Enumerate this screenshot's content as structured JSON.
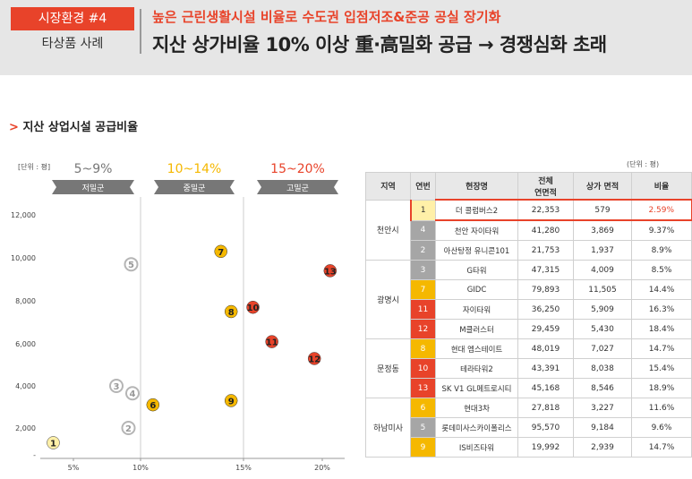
{
  "header": {
    "badge": "시장환경 #4",
    "subtitle": "타상품 사례",
    "headline": "높은 근린생활시설 비율로 수도권 입점저조&준공 공실 장기화",
    "title": "지산 상가비율 10% 이상 重·高밀화 공급 → 경쟁심화 초래"
  },
  "section_title": "지산 상업시설 공급비율",
  "chart_data": {
    "type": "scatter",
    "unit_label": "[단위 : 평]",
    "zones": [
      {
        "range": "5~9%",
        "label": "저밀군",
        "color": "#777777"
      },
      {
        "range": "10~14%",
        "label": "중밀군",
        "color": "#f5b800"
      },
      {
        "range": "15~20%",
        "label": "고밀군",
        "color": "#e8432a"
      }
    ],
    "xlim": [
      3,
      21
    ],
    "ylim": [
      0,
      12500
    ],
    "xticks": [
      {
        "value": 5,
        "label": "5%"
      },
      {
        "value": 10,
        "label": "10%"
      },
      {
        "value": 15,
        "label": "15%"
      },
      {
        "value": 20,
        "label": "20%"
      }
    ],
    "yticks": [
      {
        "value": 0,
        "label": "-"
      },
      {
        "value": 2000,
        "label": "2,000"
      },
      {
        "value": 4000,
        "label": "4,000"
      },
      {
        "value": 6000,
        "label": "6,000"
      },
      {
        "value": 8000,
        "label": "8,000"
      },
      {
        "value": 10000,
        "label": "10,000"
      },
      {
        "value": 12000,
        "label": "12,000"
      }
    ],
    "series": [
      {
        "labels": [
          "1",
          "2",
          "3",
          "4",
          "5",
          "6",
          "7",
          "8",
          "9",
          "10",
          "11",
          "12",
          "13"
        ],
        "x": [
          3.5,
          9.1,
          8.2,
          9.4,
          9.3,
          10.6,
          13.9,
          14.4,
          14.4,
          15.6,
          16.8,
          19.5,
          20.5
        ],
        "y": [
          900,
          2000,
          4000,
          3650,
          9700,
          3100,
          10300,
          7500,
          3300,
          7700,
          6100,
          5300,
          9400
        ],
        "colors": [
          "#fff0a8",
          "#b5b5b5",
          "#b5b5b5",
          "#b5b5b5",
          "#b5b5b5",
          "#f5b800",
          "#f5b800",
          "#f5b800",
          "#f5b800",
          "#e8432a",
          "#e8432a",
          "#e8432a",
          "#e8432a"
        ]
      }
    ]
  },
  "table": {
    "unit": "(단위 : 평)",
    "columns": [
      "지역",
      "연번",
      "현장명",
      "전체\n연면적",
      "상가 면적",
      "비율"
    ],
    "groups": [
      {
        "region": "천안시",
        "rows": [
          {
            "no": "1",
            "name": "더 콜럼버스2",
            "total": "22,353",
            "retail": "579",
            "ratio": "2.59%",
            "color": "#fff0a8",
            "highlight": true
          },
          {
            "no": "4",
            "name": "천안 자이타워",
            "total": "41,280",
            "retail": "3,869",
            "ratio": "9.37%",
            "color": "#a6a6a6"
          },
          {
            "no": "2",
            "name": "아산탕정 유니콘101",
            "total": "21,753",
            "retail": "1,937",
            "ratio": "8.9%",
            "color": "#a6a6a6"
          }
        ]
      },
      {
        "region": "광명시",
        "rows": [
          {
            "no": "3",
            "name": "G타워",
            "total": "47,315",
            "retail": "4,009",
            "ratio": "8.5%",
            "color": "#a6a6a6"
          },
          {
            "no": "7",
            "name": "GIDC",
            "total": "79,893",
            "retail": "11,505",
            "ratio": "14.4%",
            "color": "#f5b800"
          },
          {
            "no": "11",
            "name": "자이타워",
            "total": "36,250",
            "retail": "5,909",
            "ratio": "16.3%",
            "color": "#e8432a"
          },
          {
            "no": "12",
            "name": "M클러스터",
            "total": "29,459",
            "retail": "5,430",
            "ratio": "18.4%",
            "color": "#e8432a"
          }
        ]
      },
      {
        "region": "문정동",
        "rows": [
          {
            "no": "8",
            "name": "현대 엠스테이트",
            "total": "48,019",
            "retail": "7,027",
            "ratio": "14.7%",
            "color": "#f5b800"
          },
          {
            "no": "10",
            "name": "테라타워2",
            "total": "43,391",
            "retail": "8,038",
            "ratio": "15.4%",
            "color": "#e8432a"
          },
          {
            "no": "13",
            "name": "SK V1 GL메트로시티",
            "total": "45,168",
            "retail": "8,546",
            "ratio": "18.9%",
            "color": "#e8432a"
          }
        ]
      },
      {
        "region": "하남미사",
        "rows": [
          {
            "no": "6",
            "name": "현대3차",
            "total": "27,818",
            "retail": "3,227",
            "ratio": "11.6%",
            "color": "#f5b800"
          },
          {
            "no": "5",
            "name": "롯데미사스카이폴리스",
            "total": "95,570",
            "retail": "9,184",
            "ratio": "9.6%",
            "color": "#a6a6a6"
          },
          {
            "no": "9",
            "name": "IS비즈타워",
            "total": "19,992",
            "retail": "2,939",
            "ratio": "14.7%",
            "color": "#f5b800"
          }
        ]
      }
    ]
  }
}
